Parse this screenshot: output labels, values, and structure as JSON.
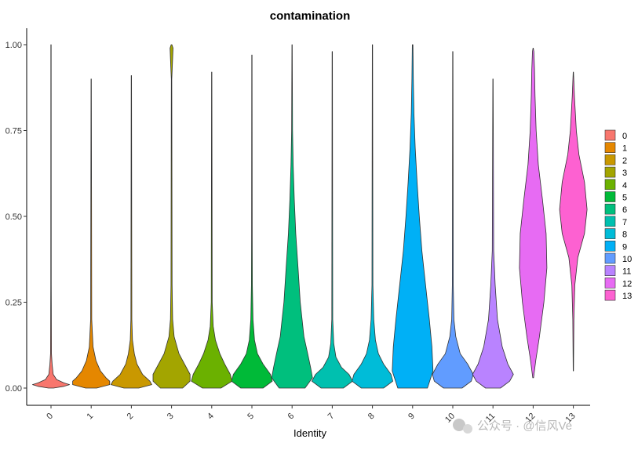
{
  "chart_data": {
    "type": "violin",
    "title": "contamination",
    "xlabel": "Identity",
    "ylabel": "",
    "ylim": [
      -0.05,
      1.03
    ],
    "yticks": [
      0.0,
      0.25,
      0.5,
      0.75,
      1.0
    ],
    "ytick_labels": [
      "0.00",
      "0.25",
      "0.50",
      "0.75",
      "1.00"
    ],
    "categories": [
      "0",
      "1",
      "2",
      "3",
      "4",
      "5",
      "6",
      "7",
      "8",
      "9",
      "10",
      "11",
      "12",
      "13"
    ],
    "colors": [
      "#F8766D",
      "#E58700",
      "#C99800",
      "#A3A500",
      "#6BB100",
      "#00BA38",
      "#00BF7D",
      "#00C0AF",
      "#00BCD8",
      "#00B0F6",
      "#619CFF",
      "#B983FF",
      "#E76BF3",
      "#FD61D1"
    ],
    "series": [
      {
        "name": "0",
        "min": 0.0,
        "max": 1.0,
        "points": [
          [
            0.0,
            0.07
          ],
          [
            0.005,
            0.35
          ],
          [
            0.01,
            0.5
          ],
          [
            0.015,
            0.35
          ],
          [
            0.025,
            0.15
          ],
          [
            0.04,
            0.06
          ],
          [
            0.07,
            0.03
          ],
          [
            0.1,
            0.012
          ],
          [
            0.3,
            0.006
          ],
          [
            1.0,
            0.004
          ]
        ]
      },
      {
        "name": "1",
        "min": 0.0,
        "max": 0.9,
        "points": [
          [
            0.0,
            0.15
          ],
          [
            0.01,
            0.5
          ],
          [
            0.02,
            0.5
          ],
          [
            0.03,
            0.4
          ],
          [
            0.05,
            0.25
          ],
          [
            0.08,
            0.13
          ],
          [
            0.12,
            0.05
          ],
          [
            0.2,
            0.015
          ],
          [
            0.9,
            0.004
          ]
        ]
      },
      {
        "name": "2",
        "min": 0.0,
        "max": 0.91,
        "points": [
          [
            0.0,
            0.2
          ],
          [
            0.01,
            0.55
          ],
          [
            0.02,
            0.5
          ],
          [
            0.04,
            0.3
          ],
          [
            0.07,
            0.15
          ],
          [
            0.1,
            0.08
          ],
          [
            0.14,
            0.03
          ],
          [
            0.2,
            0.012
          ],
          [
            0.91,
            0.004
          ]
        ]
      },
      {
        "name": "3",
        "min": 0.0,
        "max": 1.0,
        "points": [
          [
            0.0,
            0.3
          ],
          [
            0.02,
            0.5
          ],
          [
            0.04,
            0.5
          ],
          [
            0.07,
            0.35
          ],
          [
            0.1,
            0.2
          ],
          [
            0.15,
            0.07
          ],
          [
            0.2,
            0.03
          ],
          [
            0.3,
            0.015
          ],
          [
            0.9,
            0.006
          ],
          [
            0.96,
            0.03
          ],
          [
            0.99,
            0.04
          ],
          [
            1.0,
            0.01
          ]
        ]
      },
      {
        "name": "4",
        "min": 0.0,
        "max": 0.92,
        "points": [
          [
            0.0,
            0.25
          ],
          [
            0.02,
            0.55
          ],
          [
            0.04,
            0.5
          ],
          [
            0.07,
            0.35
          ],
          [
            0.1,
            0.22
          ],
          [
            0.14,
            0.1
          ],
          [
            0.18,
            0.04
          ],
          [
            0.25,
            0.012
          ],
          [
            0.92,
            0.004
          ]
        ]
      },
      {
        "name": "5",
        "min": 0.0,
        "max": 0.97,
        "points": [
          [
            0.0,
            0.3
          ],
          [
            0.02,
            0.55
          ],
          [
            0.04,
            0.5
          ],
          [
            0.07,
            0.3
          ],
          [
            0.1,
            0.15
          ],
          [
            0.14,
            0.07
          ],
          [
            0.2,
            0.03
          ],
          [
            0.3,
            0.012
          ],
          [
            0.45,
            0.008
          ],
          [
            0.97,
            0.004
          ]
        ]
      },
      {
        "name": "6",
        "min": 0.0,
        "max": 1.0,
        "points": [
          [
            0.0,
            0.35
          ],
          [
            0.03,
            0.55
          ],
          [
            0.06,
            0.5
          ],
          [
            0.1,
            0.42
          ],
          [
            0.15,
            0.32
          ],
          [
            0.25,
            0.22
          ],
          [
            0.35,
            0.16
          ],
          [
            0.45,
            0.1
          ],
          [
            0.55,
            0.06
          ],
          [
            0.65,
            0.03
          ],
          [
            0.75,
            0.012
          ],
          [
            1.0,
            0.004
          ]
        ]
      },
      {
        "name": "7",
        "min": 0.0,
        "max": 0.98,
        "points": [
          [
            0.0,
            0.3
          ],
          [
            0.02,
            0.55
          ],
          [
            0.04,
            0.45
          ],
          [
            0.06,
            0.25
          ],
          [
            0.09,
            0.1
          ],
          [
            0.13,
            0.04
          ],
          [
            0.2,
            0.012
          ],
          [
            0.98,
            0.004
          ]
        ]
      },
      {
        "name": "8",
        "min": 0.0,
        "max": 1.0,
        "points": [
          [
            0.0,
            0.3
          ],
          [
            0.02,
            0.55
          ],
          [
            0.04,
            0.5
          ],
          [
            0.07,
            0.3
          ],
          [
            0.1,
            0.16
          ],
          [
            0.14,
            0.08
          ],
          [
            0.2,
            0.035
          ],
          [
            0.3,
            0.012
          ],
          [
            1.0,
            0.004
          ]
        ]
      },
      {
        "name": "9",
        "min": 0.0,
        "max": 1.0,
        "points": [
          [
            0.0,
            0.4
          ],
          [
            0.05,
            0.55
          ],
          [
            0.12,
            0.52
          ],
          [
            0.2,
            0.45
          ],
          [
            0.3,
            0.35
          ],
          [
            0.4,
            0.25
          ],
          [
            0.5,
            0.18
          ],
          [
            0.6,
            0.12
          ],
          [
            0.7,
            0.07
          ],
          [
            0.8,
            0.035
          ],
          [
            0.9,
            0.02
          ],
          [
            1.0,
            0.008
          ]
        ]
      },
      {
        "name": "10",
        "min": 0.0,
        "max": 0.98,
        "points": [
          [
            0.0,
            0.25
          ],
          [
            0.02,
            0.5
          ],
          [
            0.04,
            0.55
          ],
          [
            0.07,
            0.4
          ],
          [
            0.1,
            0.2
          ],
          [
            0.15,
            0.08
          ],
          [
            0.2,
            0.03
          ],
          [
            0.3,
            0.012
          ],
          [
            0.98,
            0.004
          ]
        ]
      },
      {
        "name": "11",
        "min": 0.0,
        "max": 0.9,
        "points": [
          [
            0.0,
            0.2
          ],
          [
            0.02,
            0.45
          ],
          [
            0.04,
            0.55
          ],
          [
            0.07,
            0.4
          ],
          [
            0.12,
            0.25
          ],
          [
            0.2,
            0.12
          ],
          [
            0.3,
            0.06
          ],
          [
            0.4,
            0.02
          ],
          [
            0.9,
            0.004
          ]
        ]
      },
      {
        "name": "12",
        "min": 0.03,
        "max": 0.99,
        "points": [
          [
            0.03,
            0.01
          ],
          [
            0.08,
            0.07
          ],
          [
            0.15,
            0.17
          ],
          [
            0.25,
            0.29
          ],
          [
            0.35,
            0.37
          ],
          [
            0.45,
            0.35
          ],
          [
            0.55,
            0.25
          ],
          [
            0.65,
            0.14
          ],
          [
            0.75,
            0.08
          ],
          [
            0.85,
            0.05
          ],
          [
            0.93,
            0.035
          ],
          [
            0.98,
            0.02
          ],
          [
            0.99,
            0.005
          ]
        ]
      },
      {
        "name": "13",
        "min": 0.05,
        "max": 0.92,
        "points": [
          [
            0.05,
            0.005
          ],
          [
            0.2,
            0.015
          ],
          [
            0.3,
            0.04
          ],
          [
            0.38,
            0.12
          ],
          [
            0.45,
            0.3
          ],
          [
            0.52,
            0.37
          ],
          [
            0.6,
            0.3
          ],
          [
            0.68,
            0.15
          ],
          [
            0.75,
            0.08
          ],
          [
            0.85,
            0.03
          ],
          [
            0.92,
            0.005
          ]
        ]
      }
    ],
    "legend": {
      "position": "right",
      "entries": [
        "0",
        "1",
        "2",
        "3",
        "4",
        "5",
        "6",
        "7",
        "8",
        "9",
        "10",
        "11",
        "12",
        "13"
      ]
    }
  },
  "watermark": {
    "text": "公众号 · @信风Ve",
    "icon": "wechat-icon"
  }
}
